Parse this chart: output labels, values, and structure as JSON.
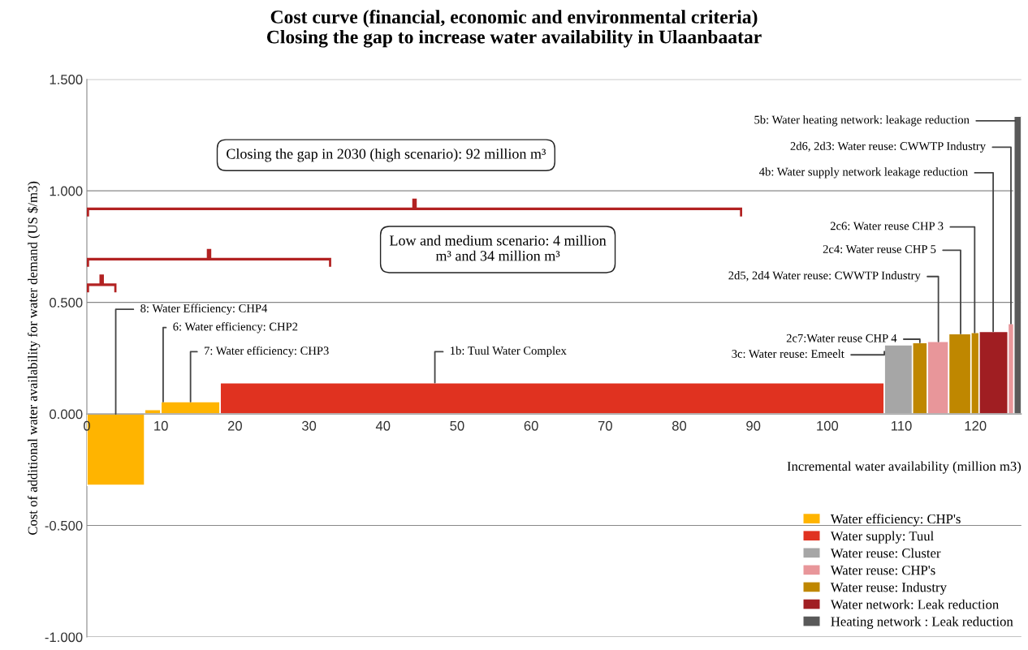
{
  "chart_data": {
    "type": "histogram",
    "title": "Cost curve (financial, economic and environmental criteria)\nClosing the gap to increase water availability in Ulaanbaatar",
    "xlabel": "Incremental water availability (million m3)",
    "ylabel": "Cost of additional water availability for water demand (US $/m3)",
    "bins": [
      0,
      7.8,
      10,
      18,
      107.7,
      111.5,
      113.5,
      116.4,
      119.4,
      120.5,
      124.4,
      125.2,
      126.2
    ],
    "series": [
      {
        "name": "Water efficiency: CHP's",
        "color": "#ffb400",
        "values": [
          -0.32,
          0.02,
          0.055,
          null,
          null,
          null,
          null,
          null,
          null,
          null,
          null,
          null
        ]
      },
      {
        "name": "Water supply: Tuul",
        "color": "#e03220",
        "values": [
          null,
          null,
          null,
          0.14,
          null,
          null,
          null,
          null,
          null,
          null,
          null,
          null
        ]
      },
      {
        "name": "Water reuse: Cluster",
        "color": "#a6a6a6",
        "values": [
          null,
          null,
          null,
          null,
          0.31,
          null,
          null,
          null,
          null,
          null,
          null,
          null
        ]
      },
      {
        "name": "Water reuse: CHP's",
        "color": "#e8969a",
        "values": [
          null,
          null,
          null,
          null,
          null,
          null,
          0.325,
          null,
          null,
          null,
          0.405,
          null
        ]
      },
      {
        "name": "Water reuse: Industry",
        "color": "#bf8700",
        "values": [
          null,
          null,
          null,
          null,
          null,
          0.32,
          null,
          0.36,
          0.365,
          null,
          null,
          null
        ]
      },
      {
        "name": "Water network: Leak reduction",
        "color": "#a01e22",
        "values": [
          null,
          null,
          null,
          null,
          null,
          null,
          null,
          null,
          null,
          0.37,
          null,
          null
        ]
      },
      {
        "name": "Heating network : Leak reduction",
        "color": "#595959",
        "values": [
          null,
          null,
          null,
          null,
          null,
          null,
          null,
          null,
          null,
          null,
          null,
          1.335
        ]
      }
    ],
    "xlim": [
      0,
      126.2
    ],
    "ylim": [
      -1.0,
      1.5
    ],
    "xticks": [
      0,
      10,
      20,
      30,
      40,
      50,
      60,
      70,
      80,
      90,
      100,
      110,
      120
    ],
    "yticks": [
      {
        "value": -1.0,
        "label": "-1.000"
      },
      {
        "value": -0.5,
        "label": "-0.500"
      },
      {
        "value": 0.0,
        "label": "0.000"
      },
      {
        "value": 0.5,
        "label": "0.500"
      },
      {
        "value": 1.0,
        "label": "1.000"
      },
      {
        "value": 1.5,
        "label": "1.500"
      }
    ],
    "grid": "y",
    "legend": "bottom right",
    "annotations": [
      {
        "text": "8: Water Efficiency: CHP4",
        "x": 3.9,
        "y": 0.0
      },
      {
        "text": "6: Water efficiency: CHP2",
        "x": 10.3,
        "y": 0.055
      },
      {
        "text": "7: Water efficiency: CHP3",
        "x": 14,
        "y": 0.055
      },
      {
        "text": "1b: Tuul Water Complex",
        "x": 47,
        "y": 0.14
      },
      {
        "text": "3c: Water reuse: Emeelt",
        "x": 107.7,
        "y": 0.28
      },
      {
        "text": "2c7:Water reuse CHP 4",
        "x": 112.5,
        "y": 0.32
      },
      {
        "text": "2d5, 2d4 Water reuse: CWWTP Industry",
        "x": 115,
        "y": 0.325
      },
      {
        "text": "2c4: Water reuse CHP 5",
        "x": 118,
        "y": 0.36
      },
      {
        "text": "2c6: Water reuse CHP 3",
        "x": 119.9,
        "y": 0.365
      },
      {
        "text": "4b: Water supply network leakage reduction",
        "x": 122.4,
        "y": 0.37
      },
      {
        "text": "2d6, 2d3: Water reuse: CWWTP Industry",
        "x": 124.8,
        "y": 0.405
      },
      {
        "text": "5b: Water heating network: leakage reduction",
        "x": 125.4,
        "y": 1.314
      },
      "Closing the gap in 2030 (high scenario): 92 million m³",
      "Low and medium scenario: 4 million\nm³ and 34 million m³"
    ]
  }
}
